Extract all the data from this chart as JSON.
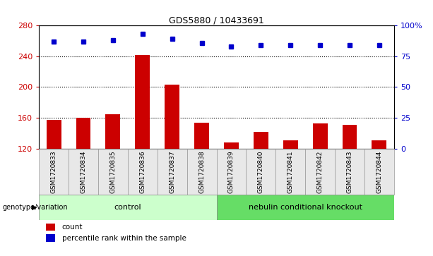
{
  "title": "GDS5880 / 10433691",
  "samples": [
    "GSM1720833",
    "GSM1720834",
    "GSM1720835",
    "GSM1720836",
    "GSM1720837",
    "GSM1720838",
    "GSM1720839",
    "GSM1720840",
    "GSM1720841",
    "GSM1720842",
    "GSM1720843",
    "GSM1720844"
  ],
  "counts": [
    157,
    160,
    165,
    242,
    203,
    154,
    128,
    142,
    131,
    153,
    151,
    131
  ],
  "percentiles": [
    87,
    87,
    88,
    93,
    89,
    86,
    83,
    84,
    84,
    84,
    84,
    84
  ],
  "bar_color": "#cc0000",
  "dot_color": "#0000cc",
  "ymin": 120,
  "ymax": 280,
  "yticks": [
    120,
    160,
    200,
    240,
    280
  ],
  "y2min": 0,
  "y2max": 100,
  "y2ticks": [
    0,
    25,
    50,
    75,
    100
  ],
  "y2ticklabels": [
    "0",
    "25",
    "50",
    "75",
    "100%"
  ],
  "grid_values": [
    160,
    200,
    240
  ],
  "n_control": 6,
  "n_knockout": 6,
  "control_label": "control",
  "knockout_label": "nebulin conditional knockout",
  "group_label": "genotype/variation",
  "legend_count": "count",
  "legend_percentile": "percentile rank within the sample",
  "control_color": "#ccffcc",
  "knockout_color": "#66dd66",
  "bar_width": 0.5,
  "bg_color": "#e8e8e8"
}
